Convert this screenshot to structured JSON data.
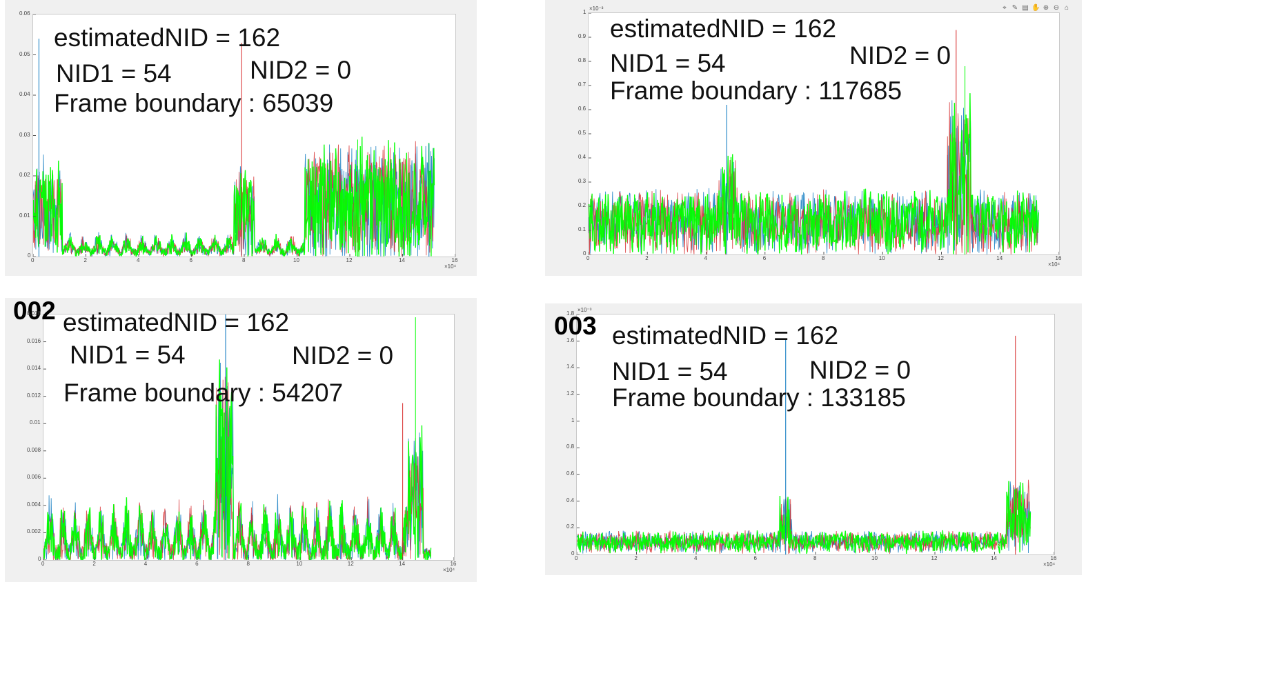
{
  "colors": {
    "background": "#f0f0f0",
    "axes": "#ffffff",
    "series": [
      "#0072bd",
      "#d62728",
      "#00ff00"
    ]
  },
  "toolbar": {
    "icons": [
      "pin-icon",
      "brush-icon",
      "datatip-icon",
      "pan-icon",
      "zoom-in-icon",
      "zoom-out-icon",
      "home-icon"
    ]
  },
  "panels": [
    {
      "tag": "",
      "annotations": {
        "estimated": "estimatedNID  =  162",
        "nid1": "NID1  =  54",
        "nid2": "NID2  =  0",
        "frame": "Frame boundary : 65039"
      }
    },
    {
      "tag": "",
      "annotations": {
        "estimated": "estimatedNID  =  162",
        "nid1": "NID1  =  54",
        "nid2": "NID2  =  0",
        "frame": "Frame boundary : 117685"
      }
    },
    {
      "tag": "002",
      "annotations": {
        "estimated": "estimatedNID  =  162",
        "nid1": "NID1  =  54",
        "nid2": "NID2  =  0",
        "frame": "Frame boundary : 54207"
      }
    },
    {
      "tag": "003",
      "annotations": {
        "estimated": "estimatedNID  =  162",
        "nid1": "NID1  =  54",
        "nid2": "NID2  =  0",
        "frame": "Frame boundary : 133185"
      }
    }
  ],
  "chart_data": [
    {
      "type": "line",
      "x_multiplier": "×10⁴",
      "xlim": [
        0,
        16
      ],
      "ylim": [
        0,
        0.06
      ],
      "xticks": [
        0,
        2,
        4,
        6,
        8,
        10,
        12,
        14,
        16
      ],
      "yticks": [
        0,
        0.01,
        0.02,
        0.03,
        0.04,
        0.05,
        0.06
      ],
      "series_colors": [
        "#0072bd",
        "#d62728",
        "#00ff00"
      ],
      "x_end": 15.2,
      "base": 0.001,
      "noise": 0.002,
      "segments": [
        {
          "from": 0.0,
          "to": 1.1,
          "level": 0.018,
          "noise": 0.007
        },
        {
          "from": 1.1,
          "to": 7.6,
          "level": 0.0045,
          "bursts": 0.55
        },
        {
          "from": 7.6,
          "to": 8.4,
          "level": 0.016,
          "noise": 0.006
        },
        {
          "from": 8.4,
          "to": 10.3,
          "level": 0.0045,
          "bursts": 0.55
        },
        {
          "from": 10.3,
          "to": 15.2,
          "level": 0.021,
          "noise": 0.008
        }
      ],
      "spikes": [
        {
          "x": 0.22,
          "y": 0.054
        },
        {
          "x": 7.9,
          "y": 0.053
        },
        {
          "x": 12.3,
          "y": 0.029
        },
        {
          "x": 15.0,
          "y": 0.028
        }
      ]
    },
    {
      "type": "line",
      "y_multiplier": "×10⁻³",
      "x_multiplier": "×10⁴",
      "xlim": [
        0,
        16
      ],
      "ylim": [
        0,
        1
      ],
      "xticks": [
        0,
        2,
        4,
        6,
        8,
        10,
        12,
        14,
        16
      ],
      "yticks": [
        0,
        0.1,
        0.2,
        0.3,
        0.4,
        0.5,
        0.6,
        0.7,
        0.8,
        0.9,
        1
      ],
      "series_colors": [
        "#0072bd",
        "#d62728",
        "#00ff00"
      ],
      "x_end": 15.3,
      "base": 0.02,
      "noise": 0.05,
      "segments": [
        {
          "from": 0.0,
          "to": 4.4,
          "level": 0.2,
          "noise": 0.07
        },
        {
          "from": 4.4,
          "to": 5.0,
          "level": 0.33,
          "noise": 0.08
        },
        {
          "from": 5.0,
          "to": 12.2,
          "level": 0.2,
          "noise": 0.07
        },
        {
          "from": 12.2,
          "to": 13.0,
          "level": 0.5,
          "noise": 0.15
        },
        {
          "from": 13.0,
          "to": 15.3,
          "level": 0.2,
          "noise": 0.07
        }
      ],
      "spikes": [
        {
          "x": 4.7,
          "y": 0.62
        },
        {
          "x": 12.5,
          "y": 0.93
        },
        {
          "x": 12.8,
          "y": 0.78
        }
      ]
    },
    {
      "type": "line",
      "x_multiplier": "×10⁴",
      "xlim": [
        0,
        16
      ],
      "ylim": [
        0,
        0.018
      ],
      "xticks": [
        0,
        2,
        4,
        6,
        8,
        10,
        12,
        14,
        16
      ],
      "yticks": [
        0,
        0.002,
        0.004,
        0.006,
        0.008,
        0.01,
        0.012,
        0.014,
        0.016,
        0.018
      ],
      "series_colors": [
        "#0072bd",
        "#d62728",
        "#00ff00"
      ],
      "x_end": 15.1,
      "base": 0.0004,
      "noise": 0.001,
      "segments": [
        {
          "from": 0.0,
          "to": 6.7,
          "level": 0.0035,
          "noise": 0.0015,
          "bursts": 0.5
        },
        {
          "from": 6.7,
          "to": 7.4,
          "level": 0.011,
          "noise": 0.004
        },
        {
          "from": 7.4,
          "to": 14.2,
          "level": 0.0035,
          "noise": 0.0015,
          "bursts": 0.5
        },
        {
          "from": 14.2,
          "to": 14.8,
          "level": 0.007,
          "noise": 0.003
        }
      ],
      "spikes": [
        {
          "x": 7.1,
          "y": 0.0185
        },
        {
          "x": 14.0,
          "y": 0.0115
        },
        {
          "x": 14.5,
          "y": 0.0178
        }
      ]
    },
    {
      "type": "line",
      "y_multiplier": "×10⁻³",
      "x_multiplier": "×10⁴",
      "xlim": [
        0,
        16
      ],
      "ylim": [
        0,
        1.8
      ],
      "xticks": [
        0,
        2,
        4,
        6,
        8,
        10,
        12,
        14,
        16
      ],
      "yticks": [
        0,
        0.2,
        0.4,
        0.6,
        0.8,
        1,
        1.2,
        1.4,
        1.6,
        1.8
      ],
      "series_colors": [
        "#0072bd",
        "#d62728",
        "#00ff00"
      ],
      "x_end": 15.2,
      "base": 0.03,
      "noise": 0.05,
      "segments": [
        {
          "from": 0.0,
          "to": 6.8,
          "level": 0.13,
          "noise": 0.06
        },
        {
          "from": 6.8,
          "to": 7.2,
          "level": 0.35,
          "noise": 0.12
        },
        {
          "from": 7.2,
          "to": 14.4,
          "level": 0.13,
          "noise": 0.06
        },
        {
          "from": 14.4,
          "to": 15.2,
          "level": 0.45,
          "noise": 0.12
        }
      ],
      "spikes": [
        {
          "x": 7.0,
          "y": 1.62
        },
        {
          "x": 14.7,
          "y": 1.64
        }
      ]
    }
  ]
}
